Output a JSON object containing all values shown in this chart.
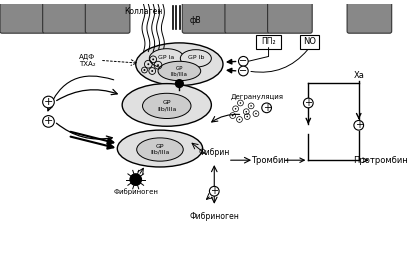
{
  "labels": {
    "collagen": "Коллаген",
    "fvw": "фВ",
    "gp_ia": "GP Ia",
    "gp_ib": "GP Ib",
    "gp_iib_iiia": "GP\nIIb/IIIa",
    "adf_txa": "АДФ\nТХА₂",
    "pp2": "ПП₂",
    "no": "NO",
    "degranulation": "Дегрануляция",
    "fibrin": "Фибрин",
    "fibrinogen_left": "Фибриноген",
    "fibrinogen_bot": "Фибриноген",
    "thrombin": "Тромбин",
    "prothrombin": "Протромбин",
    "xa": "Xa"
  },
  "cell_color": "#888888",
  "platelet_color": "#e0e0e0",
  "platelet_inner_color": "#cccccc"
}
